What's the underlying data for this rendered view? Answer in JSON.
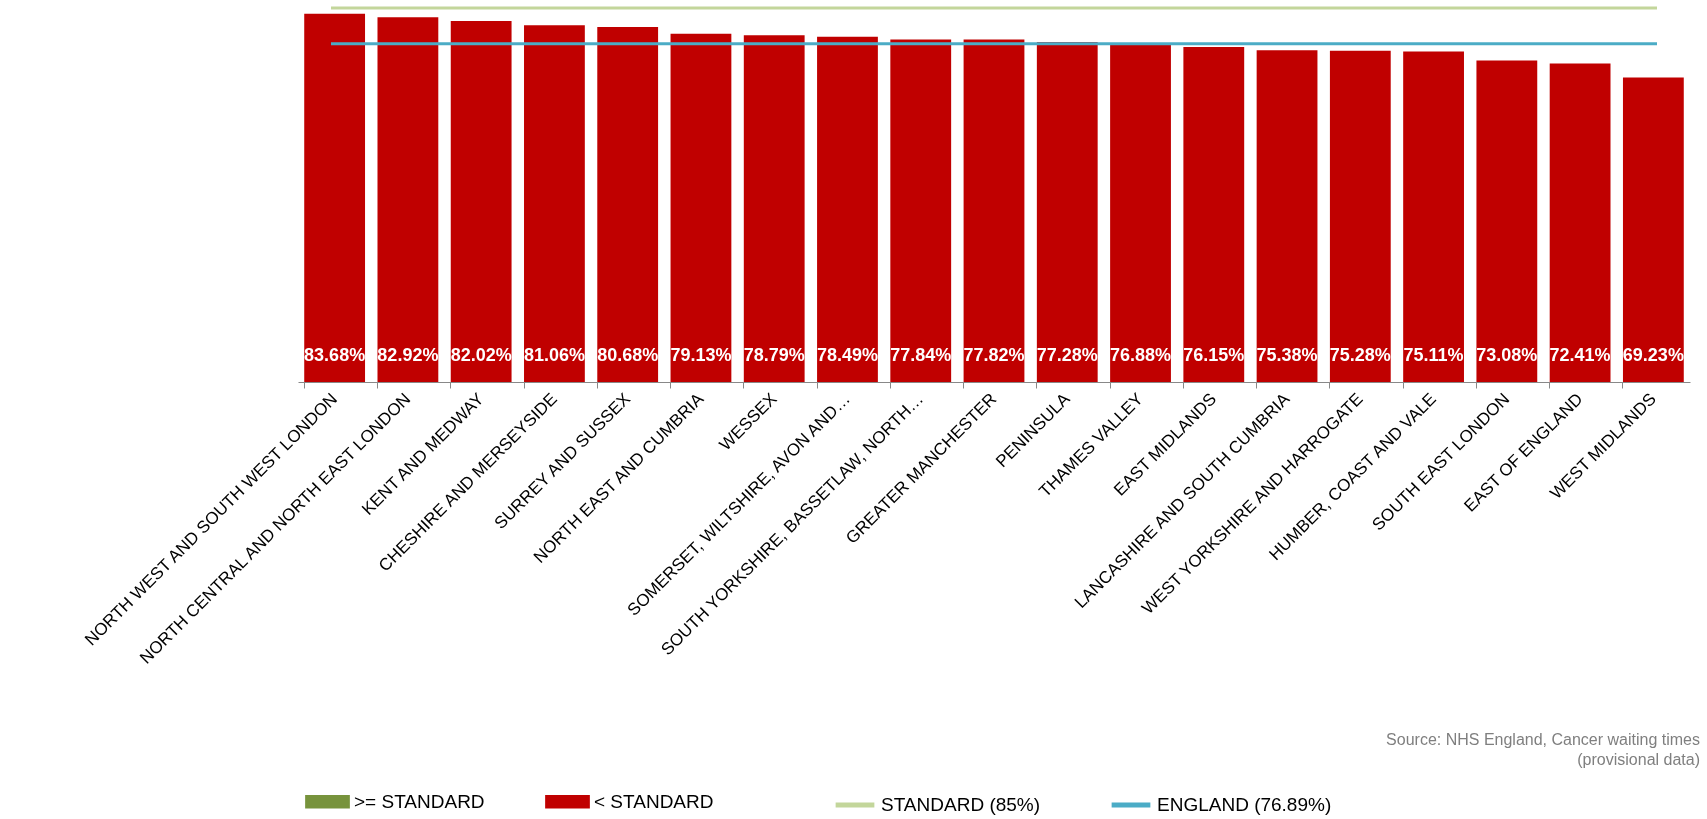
{
  "chart_data": {
    "type": "bar",
    "categories": [
      "NORTH WEST AND SOUTH WEST LONDON",
      "NORTH CENTRAL AND NORTH EAST LONDON",
      "KENT AND MEDWAY",
      "CHESHIRE AND MERSEYSIDE",
      "SURREY AND SUSSEX",
      "NORTH EAST AND CUMBRIA",
      "WESSEX",
      "SOMERSET, WILTSHIRE, AVON AND…",
      "SOUTH YORKSHIRE, BASSETLAW, NORTH…",
      "GREATER MANCHESTER",
      "PENINSULA",
      "THAMES VALLEY",
      "EAST MIDLANDS",
      "LANCASHIRE AND SOUTH CUMBRIA",
      "WEST YORKSHIRE AND HARROGATE",
      "HUMBER, COAST AND VALE",
      "SOUTH EAST LONDON",
      "EAST OF ENGLAND",
      "WEST MIDLANDS"
    ],
    "series": [
      {
        "name": ">= STANDARD",
        "color": "#77933c",
        "values": [
          null,
          null,
          null,
          null,
          null,
          null,
          null,
          null,
          null,
          null,
          null,
          null,
          null,
          null,
          null,
          null,
          null,
          null,
          null
        ]
      },
      {
        "name": "< STANDARD",
        "color": "#c00000",
        "values": [
          83.68,
          82.92,
          82.02,
          81.06,
          80.68,
          79.13,
          78.79,
          78.49,
          77.84,
          77.82,
          77.28,
          76.88,
          76.15,
          75.38,
          75.28,
          75.11,
          73.08,
          72.41,
          69.23
        ],
        "value_labels": [
          "83.68%",
          "82.92%",
          "82.02%",
          "81.06%",
          "80.68%",
          "79.13%",
          "78.79%",
          "78.49%",
          "77.84%",
          "77.82%",
          "77.28%",
          "76.88%",
          "76.15%",
          "75.38%",
          "75.28%",
          "75.11%",
          "73.08%",
          "72.41%",
          "69.23%"
        ]
      }
    ],
    "tick_labels": "x",
    "ref_lines": [
      {
        "axis": "y",
        "value": 85,
        "label": "STANDARD (85%)",
        "color": "#c3d69b"
      },
      {
        "axis": "y",
        "value": 76.89,
        "label": "ENGLAND (76.89%)",
        "color": "#4bacc6"
      }
    ],
    "legend": "bottom",
    "grid": false,
    "annotations": [
      "Source: NHS England, Cancer waiting times",
      "(provisional data)"
    ]
  }
}
